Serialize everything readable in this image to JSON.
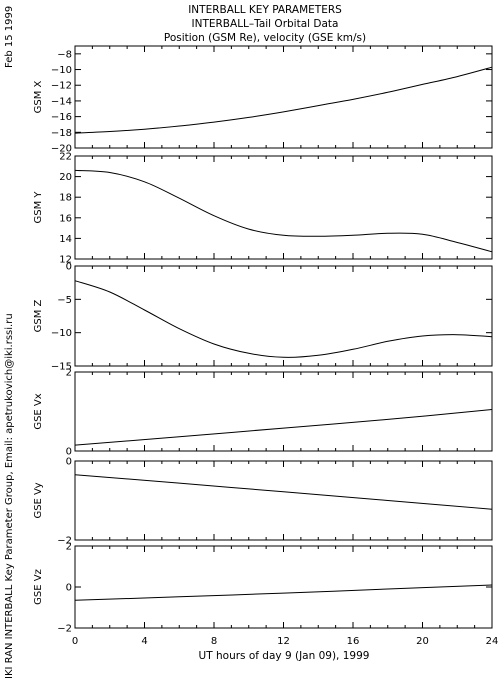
{
  "header": {
    "line1": "INTERBALL KEY PARAMETERS",
    "line2": "INTERBALL–Tail Orbital Data",
    "line3": "Position (GSM Re), velocity (GSE km/s)"
  },
  "side_date": "Feb 15 1999",
  "side_credit": "IKI RAN INTERBALL Key Parameter Group, Email: apetrukovich@iki.rssi.ru",
  "x_axis": {
    "label": "UT hours of day   9 (Jan 09), 1999",
    "ticks": [
      "0",
      "4",
      "8",
      "12",
      "16",
      "20",
      "24"
    ],
    "range": [
      0,
      24
    ]
  },
  "chart_data": [
    {
      "type": "line",
      "ylabel": "GSM X",
      "ylim": [
        -20,
        -7
      ],
      "yticks": [
        -20,
        -18,
        -16,
        -14,
        -12,
        -10,
        -8
      ],
      "series": [
        {
          "x": [
            0,
            2,
            4,
            6,
            8,
            10,
            12,
            14,
            16,
            18,
            20,
            22,
            24
          ],
          "values": [
            -18.1,
            -17.9,
            -17.6,
            -17.2,
            -16.7,
            -16.1,
            -15.4,
            -14.6,
            -13.8,
            -12.9,
            -11.9,
            -10.9,
            -9.7
          ]
        }
      ]
    },
    {
      "type": "line",
      "ylabel": "GSM Y",
      "ylim": [
        12,
        22
      ],
      "yticks": [
        12,
        14,
        16,
        18,
        20,
        22
      ],
      "series": [
        {
          "x": [
            0,
            2,
            4,
            6,
            8,
            10,
            12,
            14,
            16,
            18,
            20,
            22,
            24
          ],
          "values": [
            20.6,
            20.4,
            19.5,
            17.9,
            16.2,
            14.9,
            14.3,
            14.2,
            14.3,
            14.5,
            14.4,
            13.6,
            12.7
          ]
        }
      ]
    },
    {
      "type": "line",
      "ylabel": "GSM Z",
      "ylim": [
        -15,
        0
      ],
      "yticks": [
        -15,
        -10,
        -5,
        0
      ],
      "series": [
        {
          "x": [
            0,
            2,
            4,
            6,
            8,
            10,
            12,
            14,
            16,
            18,
            20,
            22,
            24
          ],
          "values": [
            -2.2,
            -3.9,
            -6.6,
            -9.4,
            -11.7,
            -13.1,
            -13.7,
            -13.4,
            -12.5,
            -11.3,
            -10.5,
            -10.3,
            -10.6
          ]
        }
      ]
    },
    {
      "type": "line",
      "ylabel": "GSE Vx",
      "ylim": [
        0,
        2
      ],
      "yticks": [
        0,
        2
      ],
      "series": [
        {
          "x": [
            0,
            6,
            12,
            18,
            24
          ],
          "values": [
            0.15,
            0.36,
            0.58,
            0.8,
            1.05
          ]
        }
      ]
    },
    {
      "type": "line",
      "ylabel": "GSE Vy",
      "ylim": [
        -2,
        0
      ],
      "yticks": [
        -2,
        0
      ],
      "series": [
        {
          "x": [
            0,
            6,
            12,
            18,
            24
          ],
          "values": [
            -0.35,
            -0.56,
            -0.78,
            -1.0,
            -1.22
          ]
        }
      ]
    },
    {
      "type": "line",
      "ylabel": "GSE Vz",
      "ylim": [
        -2,
        2
      ],
      "yticks": [
        -2,
        0,
        2
      ],
      "series": [
        {
          "x": [
            0,
            6,
            12,
            18,
            24
          ],
          "values": [
            -0.65,
            -0.48,
            -0.3,
            -0.1,
            0.1
          ]
        }
      ]
    }
  ]
}
